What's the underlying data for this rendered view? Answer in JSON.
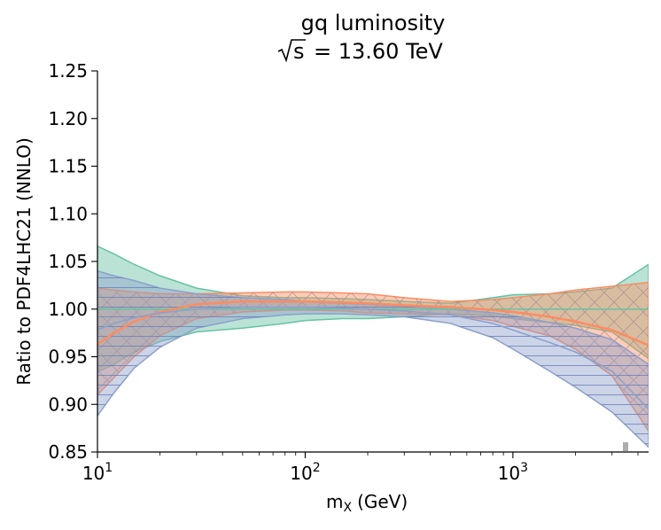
{
  "chart_data": {
    "type": "line",
    "title_line1": "gq luminosity",
    "title_line2_prefix": "s",
    "title_line2_suffix": "= 13.60 TeV",
    "xlabel_main": "m",
    "xlabel_sub": "X",
    "xlabel_unit": "(GeV)",
    "ylabel": "Ratio to PDF4LHC21 (NNLO)",
    "xscale": "log",
    "xlim": [
      10,
      4500
    ],
    "ylim": [
      0.85,
      1.25
    ],
    "yticks": [
      "0.85",
      "0.90",
      "0.95",
      "1.00",
      "1.05",
      "1.10",
      "1.15",
      "1.20",
      "1.25"
    ],
    "xticks": [
      {
        "value": 10,
        "base": "10",
        "exp": "1"
      },
      {
        "value": 100,
        "base": "10",
        "exp": "2"
      },
      {
        "value": 1000,
        "base": "10",
        "exp": "3"
      }
    ],
    "series": [
      {
        "name": "green",
        "color": "#66c2a5",
        "hatch": "none",
        "x": [
          10,
          12,
          15,
          20,
          30,
          50,
          80,
          100,
          150,
          200,
          300,
          500,
          800,
          1000,
          1500,
          2000,
          3000,
          4500
        ],
        "central": [
          1.0,
          1.0,
          1.0,
          1.0,
          1.0,
          1.0,
          1.0,
          1.0,
          1.0,
          1.0,
          1.0,
          1.0,
          1.0,
          1.0,
          1.0,
          1.0,
          1.0,
          1.0
        ],
        "upper": [
          1.066,
          1.058,
          1.047,
          1.035,
          1.022,
          1.014,
          1.012,
          1.012,
          1.011,
          1.01,
          1.008,
          1.006,
          1.012,
          1.015,
          1.016,
          1.018,
          1.022,
          1.047
        ],
        "lower": [
          0.934,
          0.942,
          0.955,
          0.966,
          0.976,
          0.98,
          0.985,
          0.988,
          0.99,
          0.99,
          0.992,
          0.995,
          0.993,
          0.99,
          0.986,
          0.983,
          0.976,
          0.948
        ]
      },
      {
        "name": "orange",
        "color": "#fc8d62",
        "hatch": "cross",
        "x": [
          10,
          12,
          15,
          20,
          30,
          50,
          80,
          100,
          150,
          200,
          300,
          500,
          800,
          1000,
          1500,
          2000,
          3000,
          4500
        ],
        "central": [
          0.963,
          0.975,
          0.987,
          0.997,
          1.005,
          1.008,
          1.008,
          1.008,
          1.007,
          1.006,
          1.004,
          1.002,
          0.999,
          0.997,
          0.992,
          0.987,
          0.978,
          0.962
        ],
        "upper": [
          1.022,
          1.02,
          1.018,
          1.016,
          1.016,
          1.017,
          1.018,
          1.018,
          1.017,
          1.016,
          1.012,
          1.008,
          1.01,
          1.012,
          1.016,
          1.02,
          1.024,
          1.028
        ],
        "lower": [
          0.91,
          0.928,
          0.95,
          0.972,
          0.99,
          0.997,
          0.999,
          0.999,
          0.998,
          0.996,
          0.995,
          0.994,
          0.988,
          0.982,
          0.972,
          0.958,
          0.93,
          0.872
        ]
      },
      {
        "name": "blue",
        "color": "#8da0cb",
        "hatch": "horizontal",
        "x": [
          10,
          12,
          15,
          20,
          30,
          50,
          80,
          100,
          150,
          200,
          300,
          500,
          800,
          1000,
          1500,
          2000,
          3000,
          4500
        ],
        "central": [
          0.978,
          0.985,
          0.991,
          0.996,
          1.0,
          1.002,
          1.002,
          1.002,
          1.001,
          1.0,
          0.998,
          0.994,
          0.985,
          0.978,
          0.965,
          0.955,
          0.935,
          0.895
        ],
        "upper": [
          1.04,
          1.035,
          1.03,
          1.022,
          1.016,
          1.012,
          1.01,
          1.008,
          1.006,
          1.005,
          1.003,
          1.0,
          0.996,
          0.993,
          0.986,
          0.98,
          0.968,
          0.942
        ],
        "lower": [
          0.888,
          0.912,
          0.938,
          0.96,
          0.98,
          0.99,
          0.994,
          0.995,
          0.995,
          0.994,
          0.992,
          0.985,
          0.97,
          0.958,
          0.935,
          0.918,
          0.892,
          0.855
        ]
      }
    ],
    "reference_line": 1.0
  }
}
